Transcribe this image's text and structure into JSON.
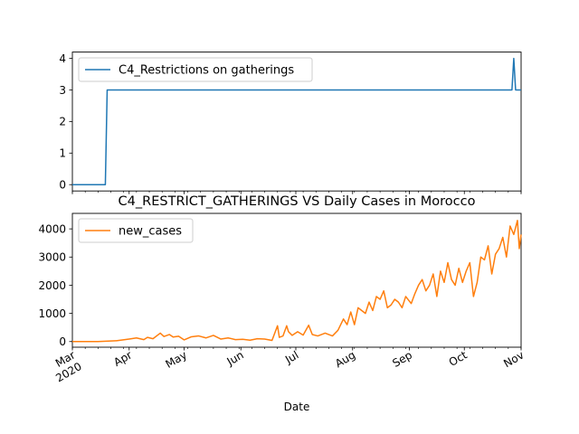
{
  "chart_data": [
    {
      "type": "line",
      "title": "",
      "xlabel": "",
      "ylabel": "",
      "ylim": [
        -0.2,
        4.2
      ],
      "yticks": [
        0,
        1,
        2,
        3,
        4
      ],
      "legend_placement": "upper-left",
      "grid": false,
      "series": [
        {
          "name": "C4_Restrictions on gatherings",
          "color": "#1f77b4",
          "x": [
            "2020-03-01",
            "2020-03-19",
            "2020-03-20",
            "2020-10-27",
            "2020-10-28",
            "2020-10-29",
            "2020-11-01"
          ],
          "values": [
            0,
            0,
            3,
            3,
            4,
            3,
            3
          ]
        }
      ]
    },
    {
      "type": "line",
      "title": "C4_RESTRICT_GATHERINGS VS Daily Cases in Morocco",
      "xlabel": "Date",
      "ylabel": "",
      "ylim": [
        -200,
        4550
      ],
      "yticks": [
        0,
        1000,
        2000,
        3000,
        4000
      ],
      "xlim": [
        "2020-03-01",
        "2020-11-01"
      ],
      "month_ticks": [
        {
          "label": "Mar",
          "year": "2020",
          "date": "2020-03-01"
        },
        {
          "label": "Apr",
          "date": "2020-04-01"
        },
        {
          "label": "May",
          "date": "2020-05-01"
        },
        {
          "label": "Jun",
          "date": "2020-06-01"
        },
        {
          "label": "Jul",
          "date": "2020-07-01"
        },
        {
          "label": "Aug",
          "date": "2020-08-01"
        },
        {
          "label": "Sep",
          "date": "2020-09-01"
        },
        {
          "label": "Oct",
          "date": "2020-10-01"
        },
        {
          "label": "Nov",
          "date": "2020-11-01"
        }
      ],
      "legend_placement": "upper-left",
      "grid": false,
      "series": [
        {
          "name": "new_cases",
          "color": "#ff7f0e",
          "x": [
            "2020-03-01",
            "2020-03-15",
            "2020-03-25",
            "2020-04-01",
            "2020-04-05",
            "2020-04-09",
            "2020-04-11",
            "2020-04-14",
            "2020-04-18",
            "2020-04-20",
            "2020-04-23",
            "2020-04-25",
            "2020-04-28",
            "2020-05-01",
            "2020-05-05",
            "2020-05-09",
            "2020-05-13",
            "2020-05-17",
            "2020-05-21",
            "2020-05-25",
            "2020-05-29",
            "2020-06-02",
            "2020-06-06",
            "2020-06-10",
            "2020-06-14",
            "2020-06-18",
            "2020-06-21",
            "2020-06-22",
            "2020-06-24",
            "2020-06-26",
            "2020-06-27",
            "2020-06-29",
            "2020-07-02",
            "2020-07-05",
            "2020-07-08",
            "2020-07-10",
            "2020-07-13",
            "2020-07-17",
            "2020-07-21",
            "2020-07-24",
            "2020-07-27",
            "2020-07-29",
            "2020-07-31",
            "2020-08-02",
            "2020-08-04",
            "2020-08-06",
            "2020-08-08",
            "2020-08-10",
            "2020-08-12",
            "2020-08-14",
            "2020-08-16",
            "2020-08-18",
            "2020-08-20",
            "2020-08-22",
            "2020-08-24",
            "2020-08-26",
            "2020-08-28",
            "2020-08-30",
            "2020-09-02",
            "2020-09-04",
            "2020-09-06",
            "2020-09-08",
            "2020-09-10",
            "2020-09-12",
            "2020-09-14",
            "2020-09-16",
            "2020-09-18",
            "2020-09-20",
            "2020-09-22",
            "2020-09-24",
            "2020-09-26",
            "2020-09-28",
            "2020-09-30",
            "2020-10-02",
            "2020-10-04",
            "2020-10-06",
            "2020-10-08",
            "2020-10-10",
            "2020-10-12",
            "2020-10-14",
            "2020-10-16",
            "2020-10-18",
            "2020-10-20",
            "2020-10-22",
            "2020-10-24",
            "2020-10-26",
            "2020-10-28",
            "2020-10-30",
            "2020-10-31",
            "2020-11-01"
          ],
          "values": [
            0,
            2,
            30,
            90,
            130,
            70,
            150,
            100,
            300,
            180,
            250,
            160,
            190,
            60,
            170,
            200,
            130,
            220,
            90,
            130,
            70,
            80,
            50,
            100,
            90,
            40,
            560,
            150,
            200,
            560,
            350,
            220,
            350,
            230,
            580,
            250,
            200,
            300,
            200,
            400,
            800,
            600,
            1050,
            600,
            1200,
            1100,
            1000,
            1400,
            1100,
            1600,
            1500,
            1800,
            1200,
            1300,
            1500,
            1400,
            1200,
            1600,
            1350,
            1700,
            2000,
            2200,
            1800,
            2000,
            2400,
            1600,
            2500,
            2100,
            2800,
            2200,
            2000,
            2600,
            2100,
            2500,
            2800,
            1600,
            2100,
            3000,
            2900,
            3400,
            2400,
            3100,
            3300,
            3700,
            3000,
            4100,
            3800,
            4300,
            3300,
            3800
          ]
        }
      ]
    }
  ]
}
